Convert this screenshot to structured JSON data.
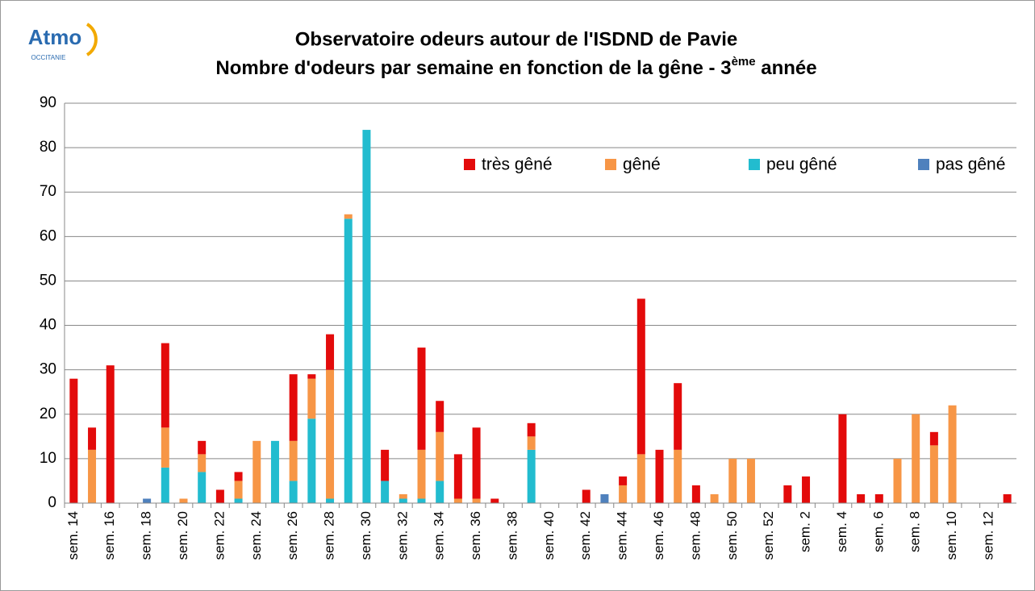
{
  "chart_data": {
    "type": "stacked-bar",
    "logo": "Atmo",
    "logo_sub": "OCCITANIE",
    "title": "Observatoire odeurs autour de l'ISDND de Pavie",
    "subtitle": "Nombre d'odeurs par semaine en fonction de la gêne -  3",
    "subtitle_sup": "ème",
    "subtitle_end": " année",
    "categories": [
      "sem. 14",
      null,
      "sem. 16",
      null,
      "sem. 18",
      null,
      "sem. 20",
      null,
      "sem. 22",
      null,
      "sem. 24",
      null,
      "sem. 26",
      null,
      "sem. 28",
      null,
      "sem. 30",
      null,
      "sem. 32",
      null,
      "sem. 34",
      null,
      "sem. 36",
      null,
      "sem. 38",
      null,
      "sem. 40",
      null,
      "sem. 42",
      null,
      "sem. 44",
      null,
      "sem. 46",
      null,
      "sem. 48",
      null,
      "sem. 50",
      null,
      "sem. 52",
      null,
      "sem. 2",
      null,
      "sem. 4",
      null,
      "sem. 6",
      null,
      "sem. 8",
      null,
      "sem. 10",
      null,
      "sem. 12",
      null
    ],
    "series": [
      {
        "name": "très gêné",
        "color": "#e30b0b",
        "values": [
          28,
          5,
          31,
          0,
          0,
          19,
          0,
          3,
          3,
          2,
          0,
          0,
          15,
          1,
          8,
          0,
          0,
          7,
          0,
          23,
          7,
          10,
          16,
          1,
          0,
          3,
          0,
          0,
          3,
          0,
          2,
          35,
          12,
          15,
          4,
          0,
          0,
          0,
          0,
          4,
          6,
          0,
          20,
          2,
          2,
          0,
          0,
          3,
          0,
          0,
          0,
          2
        ]
      },
      {
        "name": "gêné",
        "color": "#f79646",
        "values": [
          0,
          12,
          0,
          0,
          0,
          9,
          1,
          4,
          0,
          4,
          14,
          0,
          9,
          9,
          29,
          1,
          0,
          0,
          1,
          11,
          11,
          1,
          1,
          0,
          0,
          3,
          0,
          0,
          0,
          0,
          4,
          11,
          0,
          12,
          0,
          2,
          10,
          10,
          0,
          0,
          0,
          0,
          0,
          0,
          0,
          10,
          20,
          13,
          22,
          0,
          0,
          0
        ]
      },
      {
        "name": "peu gêné",
        "color": "#22bccf",
        "values": [
          0,
          0,
          0,
          0,
          0,
          8,
          0,
          7,
          0,
          1,
          0,
          14,
          5,
          19,
          1,
          64,
          84,
          5,
          1,
          1,
          5,
          0,
          0,
          0,
          0,
          12,
          0,
          0,
          0,
          0,
          0,
          0,
          0,
          0,
          0,
          0,
          0,
          0,
          0,
          0,
          0,
          0,
          0,
          0,
          0,
          0,
          0,
          0,
          0,
          0,
          0,
          0
        ]
      },
      {
        "name": "pas gêné",
        "color": "#4f81bd",
        "values": [
          0,
          0,
          0,
          0,
          1,
          0,
          0,
          0,
          0,
          0,
          0,
          0,
          0,
          0,
          0,
          0,
          0,
          0,
          0,
          0,
          0,
          0,
          0,
          0,
          0,
          0,
          0,
          0,
          0,
          2,
          0,
          0,
          0,
          0,
          0,
          0,
          0,
          0,
          0,
          0,
          0,
          0,
          0,
          0,
          0,
          0,
          0,
          0,
          0,
          0,
          0,
          0
        ]
      }
    ],
    "ylim": [
      0,
      90
    ],
    "yticks": [
      0,
      10,
      20,
      30,
      40,
      50,
      60,
      70,
      80,
      90
    ],
    "grid": true,
    "legend": "top-right"
  }
}
